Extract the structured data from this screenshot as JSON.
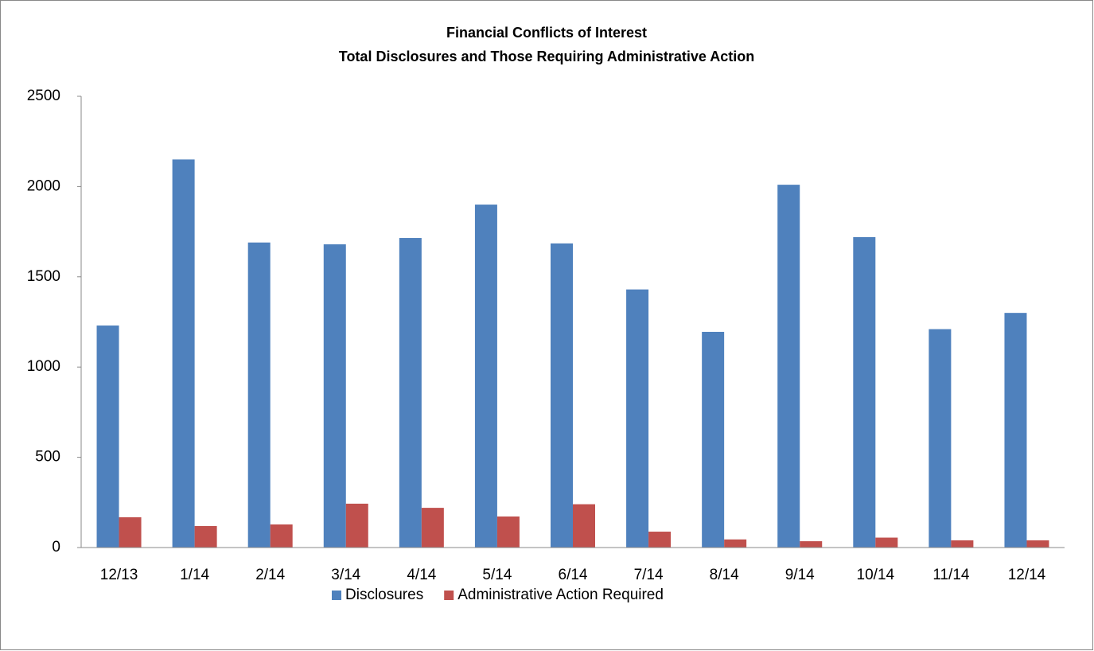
{
  "chart_data": {
    "type": "bar",
    "title": "Financial Conflicts of Interest",
    "subtitle": "Total Disclosures and Those Requiring Administrative Action",
    "categories": [
      "12/13",
      "1/14",
      "2/14",
      "3/14",
      "4/14",
      "5/14",
      "6/14",
      "7/14",
      "8/14",
      "9/14",
      "10/14",
      "11/14",
      "12/14"
    ],
    "series": [
      {
        "name": "Disclosures",
        "color": "#4f81bd",
        "values": [
          1230,
          2150,
          1690,
          1680,
          1715,
          1900,
          1685,
          1430,
          1195,
          2010,
          1720,
          1210,
          1300
        ]
      },
      {
        "name": "Administrative Action Required",
        "color": "#c0504d",
        "values": [
          168,
          119,
          128,
          243,
          220,
          172,
          240,
          88,
          45,
          35,
          55,
          40,
          40
        ]
      }
    ],
    "ylim": [
      0,
      2500
    ],
    "yticks": [
      0,
      500,
      1000,
      1500,
      2000,
      2500
    ],
    "grid": false,
    "legend": "bottom"
  }
}
